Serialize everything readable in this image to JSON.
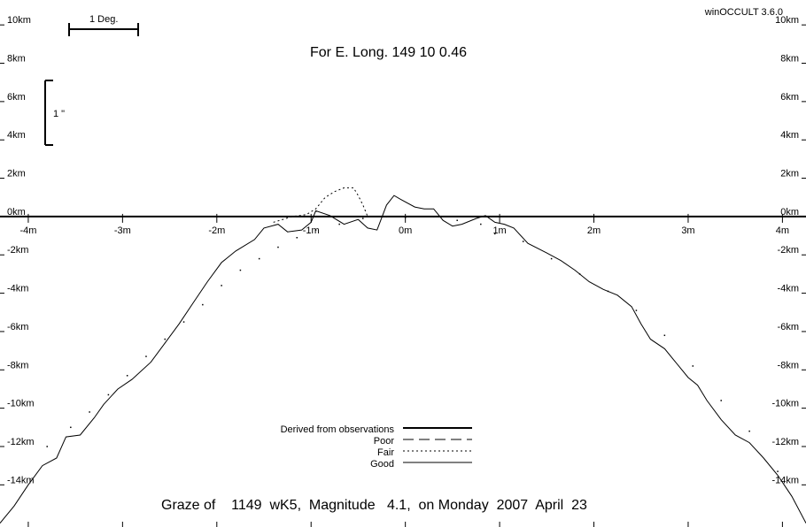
{
  "app_version": "winOCCULT 3.6.0",
  "header": {
    "title": "For E. Long.  149 10  0.46"
  },
  "footer": {
    "caption": "Graze of    1149  wK5,  Magnitude   4.1,  on Monday  2007  April  23"
  },
  "scale_bars": {
    "degree_label": "1 Deg.",
    "arcsec_label": "1 \""
  },
  "legend": [
    {
      "label": "Derived from observations",
      "style": "thick"
    },
    {
      "label": "Poor",
      "style": "long-dash"
    },
    {
      "label": "Fair",
      "style": "dotted"
    },
    {
      "label": "Good",
      "style": "solid"
    }
  ],
  "colors": {
    "background": "#ffffff",
    "ink": "#000000"
  },
  "chart_data": {
    "type": "line",
    "xlabel": "",
    "ylabel": "",
    "xlim": [
      -4.3,
      4.25
    ],
    "ylim": [
      -16.2,
      11.3
    ],
    "x_ticks": [
      -4,
      -3,
      -2,
      -1,
      0,
      1,
      2,
      3,
      4
    ],
    "x_tick_labels": [
      "-4m",
      "-3m",
      "-2m",
      "-1m",
      "0m",
      "1m",
      "2m",
      "3m",
      "4m"
    ],
    "y_ticks": [
      10,
      8,
      6,
      4,
      2,
      0,
      -2,
      -4,
      -6,
      -8,
      -10,
      -12,
      -14
    ],
    "y_tick_labels": [
      "10km",
      "8km",
      "6km",
      "4km",
      "2km",
      "0km",
      "-2km",
      "-4km",
      "-6km",
      "-8km",
      "-10km",
      "-12km",
      "-14km"
    ],
    "grid": false,
    "series": [
      {
        "name": "Good",
        "style": "solid",
        "points": [
          [
            -4.3,
            -16.0
          ],
          [
            -4.15,
            -15.1
          ],
          [
            -4.0,
            -14.0
          ],
          [
            -3.85,
            -13.0
          ],
          [
            -3.7,
            -12.6
          ],
          [
            -3.6,
            -11.5
          ],
          [
            -3.45,
            -11.4
          ],
          [
            -3.3,
            -10.5
          ],
          [
            -3.2,
            -9.8
          ],
          [
            -3.05,
            -9.0
          ],
          [
            -2.9,
            -8.5
          ],
          [
            -2.7,
            -7.6
          ],
          [
            -2.55,
            -6.6
          ],
          [
            -2.4,
            -5.6
          ],
          [
            -2.25,
            -4.5
          ],
          [
            -2.1,
            -3.4
          ],
          [
            -1.95,
            -2.4
          ],
          [
            -1.8,
            -1.8
          ],
          [
            -1.6,
            -1.2
          ],
          [
            -1.5,
            -0.6
          ],
          [
            -1.35,
            -0.4
          ],
          [
            -1.25,
            -0.8
          ],
          [
            -1.1,
            -0.7
          ],
          [
            -1.0,
            -0.3
          ],
          [
            -0.95,
            0.3
          ],
          [
            -0.8,
            0.05
          ],
          [
            -0.65,
            -0.4
          ],
          [
            -0.5,
            -0.15
          ],
          [
            -0.4,
            -0.6
          ],
          [
            -0.3,
            -0.7
          ],
          [
            -0.2,
            0.6
          ],
          [
            -0.12,
            1.1
          ],
          [
            -0.05,
            0.9
          ],
          [
            0.1,
            0.5
          ],
          [
            0.2,
            0.4
          ],
          [
            0.3,
            0.4
          ],
          [
            0.4,
            -0.2
          ],
          [
            0.5,
            -0.5
          ],
          [
            0.6,
            -0.4
          ],
          [
            0.75,
            -0.1
          ],
          [
            0.85,
            0.05
          ],
          [
            0.95,
            -0.3
          ],
          [
            1.05,
            -0.4
          ],
          [
            1.15,
            -0.6
          ],
          [
            1.3,
            -1.4
          ],
          [
            1.5,
            -1.9
          ],
          [
            1.65,
            -2.3
          ],
          [
            1.8,
            -2.8
          ],
          [
            1.95,
            -3.4
          ],
          [
            2.1,
            -3.8
          ],
          [
            2.25,
            -4.1
          ],
          [
            2.4,
            -4.7
          ],
          [
            2.5,
            -5.6
          ],
          [
            2.6,
            -6.4
          ],
          [
            2.75,
            -6.9
          ],
          [
            2.85,
            -7.5
          ],
          [
            3.0,
            -8.4
          ],
          [
            3.1,
            -8.8
          ],
          [
            3.2,
            -9.6
          ],
          [
            3.35,
            -10.6
          ],
          [
            3.5,
            -11.4
          ],
          [
            3.65,
            -11.8
          ],
          [
            3.8,
            -12.6
          ],
          [
            3.95,
            -13.5
          ],
          [
            4.1,
            -14.6
          ],
          [
            4.25,
            -16.0
          ]
        ]
      },
      {
        "name": "Fair",
        "style": "dotted",
        "points": [
          [
            -1.4,
            -0.3
          ],
          [
            -1.2,
            0.0
          ],
          [
            -1.05,
            0.1
          ],
          [
            -0.95,
            0.4
          ],
          [
            -0.85,
            1.0
          ],
          [
            -0.75,
            1.3
          ],
          [
            -0.65,
            1.5
          ],
          [
            -0.55,
            1.5
          ],
          [
            -0.5,
            1.1
          ],
          [
            -0.45,
            0.6
          ],
          [
            -0.4,
            0.0
          ]
        ]
      },
      {
        "name": "Poor",
        "style": "long-dash",
        "points": []
      },
      {
        "name": "Derived from observations",
        "style": "thick",
        "points": []
      },
      {
        "name": "Limb dots",
        "style": "sparse-dots",
        "points": [
          [
            -3.8,
            -12.0
          ],
          [
            -3.55,
            -11.0
          ],
          [
            -3.35,
            -10.2
          ],
          [
            -3.15,
            -9.3
          ],
          [
            -2.95,
            -8.3
          ],
          [
            -2.75,
            -7.3
          ],
          [
            -2.55,
            -6.4
          ],
          [
            -2.35,
            -5.5
          ],
          [
            -2.15,
            -4.6
          ],
          [
            -1.95,
            -3.6
          ],
          [
            -1.75,
            -2.8
          ],
          [
            -1.55,
            -2.2
          ],
          [
            -1.35,
            -1.6
          ],
          [
            -1.15,
            -1.1
          ],
          [
            -0.95,
            -0.7
          ],
          [
            -0.7,
            -0.4
          ],
          [
            -0.45,
            -0.1
          ],
          [
            -0.2,
            0.0
          ],
          [
            0.0,
            -0.05
          ],
          [
            0.3,
            0.0
          ],
          [
            0.55,
            -0.2
          ],
          [
            0.8,
            -0.4
          ],
          [
            0.95,
            -0.9
          ],
          [
            1.25,
            -1.3
          ],
          [
            1.55,
            -2.2
          ],
          [
            1.85,
            -3.0
          ],
          [
            2.15,
            -3.9
          ],
          [
            2.45,
            -4.9
          ],
          [
            2.75,
            -6.2
          ],
          [
            3.05,
            -7.8
          ],
          [
            3.35,
            -9.6
          ],
          [
            3.65,
            -11.2
          ],
          [
            3.95,
            -13.3
          ]
        ]
      }
    ]
  }
}
